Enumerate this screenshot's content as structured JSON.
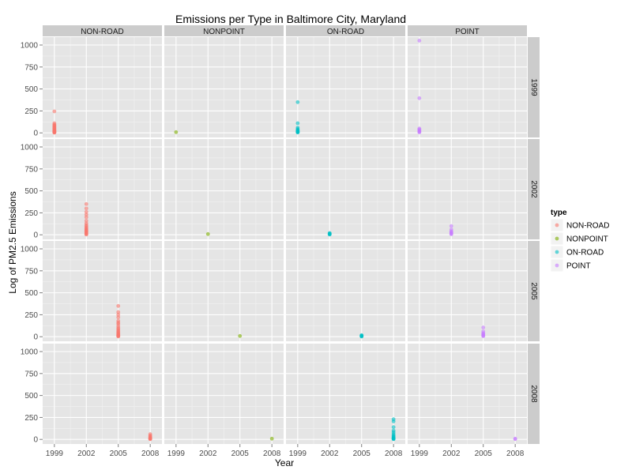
{
  "chart_data": {
    "type": "scatter",
    "title": "Emissions per Type in Baltimore City, Maryland",
    "xlabel": "Year",
    "ylabel": "Log of PM2.5 Emissions",
    "x_ticks": [
      1999,
      2002,
      2005,
      2008
    ],
    "y_ticks": [
      0,
      250,
      500,
      750,
      1000
    ],
    "xlim": [
      1997.9,
      2009.1
    ],
    "ylim": [
      -52,
      1090
    ],
    "column_facets": [
      "NON-ROAD",
      "NONPOINT",
      "ON-ROAD",
      "POINT"
    ],
    "row_facets": [
      "1999",
      "2002",
      "2005",
      "2008"
    ],
    "legend": {
      "title": "type",
      "entries": [
        {
          "label": "NON-ROAD",
          "color": "#F8766D"
        },
        {
          "label": "NONPOINT",
          "color": "#7CAE00"
        },
        {
          "label": "ON-ROAD",
          "color": "#00BFC4"
        },
        {
          "label": "POINT",
          "color": "#C77CFF"
        }
      ]
    },
    "grid": true,
    "series": [
      {
        "row": "1999",
        "col": "NON-ROAD",
        "x": 1999,
        "values": [
          245,
          110,
          95,
          88,
          80,
          72,
          65,
          58,
          50,
          44,
          38,
          32,
          27,
          22,
          18,
          14,
          10,
          7,
          5,
          3
        ]
      },
      {
        "row": "1999",
        "col": "NONPOINT",
        "x": 1999,
        "values": [
          8
        ]
      },
      {
        "row": "1999",
        "col": "ON-ROAD",
        "x": 1999,
        "values": [
          350,
          110,
          60,
          45,
          35,
          28,
          22,
          17,
          13,
          10,
          7,
          5
        ]
      },
      {
        "row": "1999",
        "col": "POINT",
        "x": 1999,
        "values": [
          1050,
          395,
          50,
          40,
          30,
          20,
          12,
          6
        ]
      },
      {
        "row": "2002",
        "col": "NON-ROAD",
        "x": 2002,
        "values": [
          350,
          300,
          260,
          230,
          200,
          160,
          130,
          110,
          95,
          82,
          70,
          60,
          52,
          45,
          38,
          30,
          22,
          15,
          8,
          3
        ]
      },
      {
        "row": "2002",
        "col": "NONPOINT",
        "x": 2002,
        "values": [
          8
        ]
      },
      {
        "row": "2002",
        "col": "ON-ROAD",
        "x": 2002,
        "values": [
          20,
          15,
          10,
          6,
          3
        ]
      },
      {
        "row": "2002",
        "col": "POINT",
        "x": 2002,
        "values": [
          100,
          60,
          40,
          30,
          20,
          12,
          6
        ]
      },
      {
        "row": "2005",
        "col": "NON-ROAD",
        "x": 2005,
        "values": [
          350,
          280,
          250,
          220,
          180,
          160,
          145,
          120,
          100,
          85,
          72,
          60,
          50,
          40,
          32,
          25,
          18,
          12,
          7,
          3
        ]
      },
      {
        "row": "2005",
        "col": "NONPOINT",
        "x": 2005,
        "values": [
          8
        ]
      },
      {
        "row": "2005",
        "col": "ON-ROAD",
        "x": 2005,
        "values": [
          18,
          13,
          9,
          5,
          2
        ]
      },
      {
        "row": "2005",
        "col": "POINT",
        "x": 2005,
        "values": [
          105,
          60,
          40,
          30,
          20,
          12,
          6
        ]
      },
      {
        "row": "2008",
        "col": "NON-ROAD",
        "x": 2008,
        "values": [
          60,
          45,
          35,
          25,
          18,
          12,
          8,
          5,
          3
        ]
      },
      {
        "row": "2008",
        "col": "NONPOINT",
        "x": 2008,
        "values": [
          8
        ]
      },
      {
        "row": "2008",
        "col": "ON-ROAD",
        "x": 2008,
        "values": [
          230,
          205,
          140,
          100,
          80,
          60,
          45,
          35,
          25,
          18,
          12,
          8,
          5,
          3
        ]
      },
      {
        "row": "2008",
        "col": "POINT",
        "x": 2008,
        "values": [
          8,
          4
        ]
      }
    ]
  }
}
